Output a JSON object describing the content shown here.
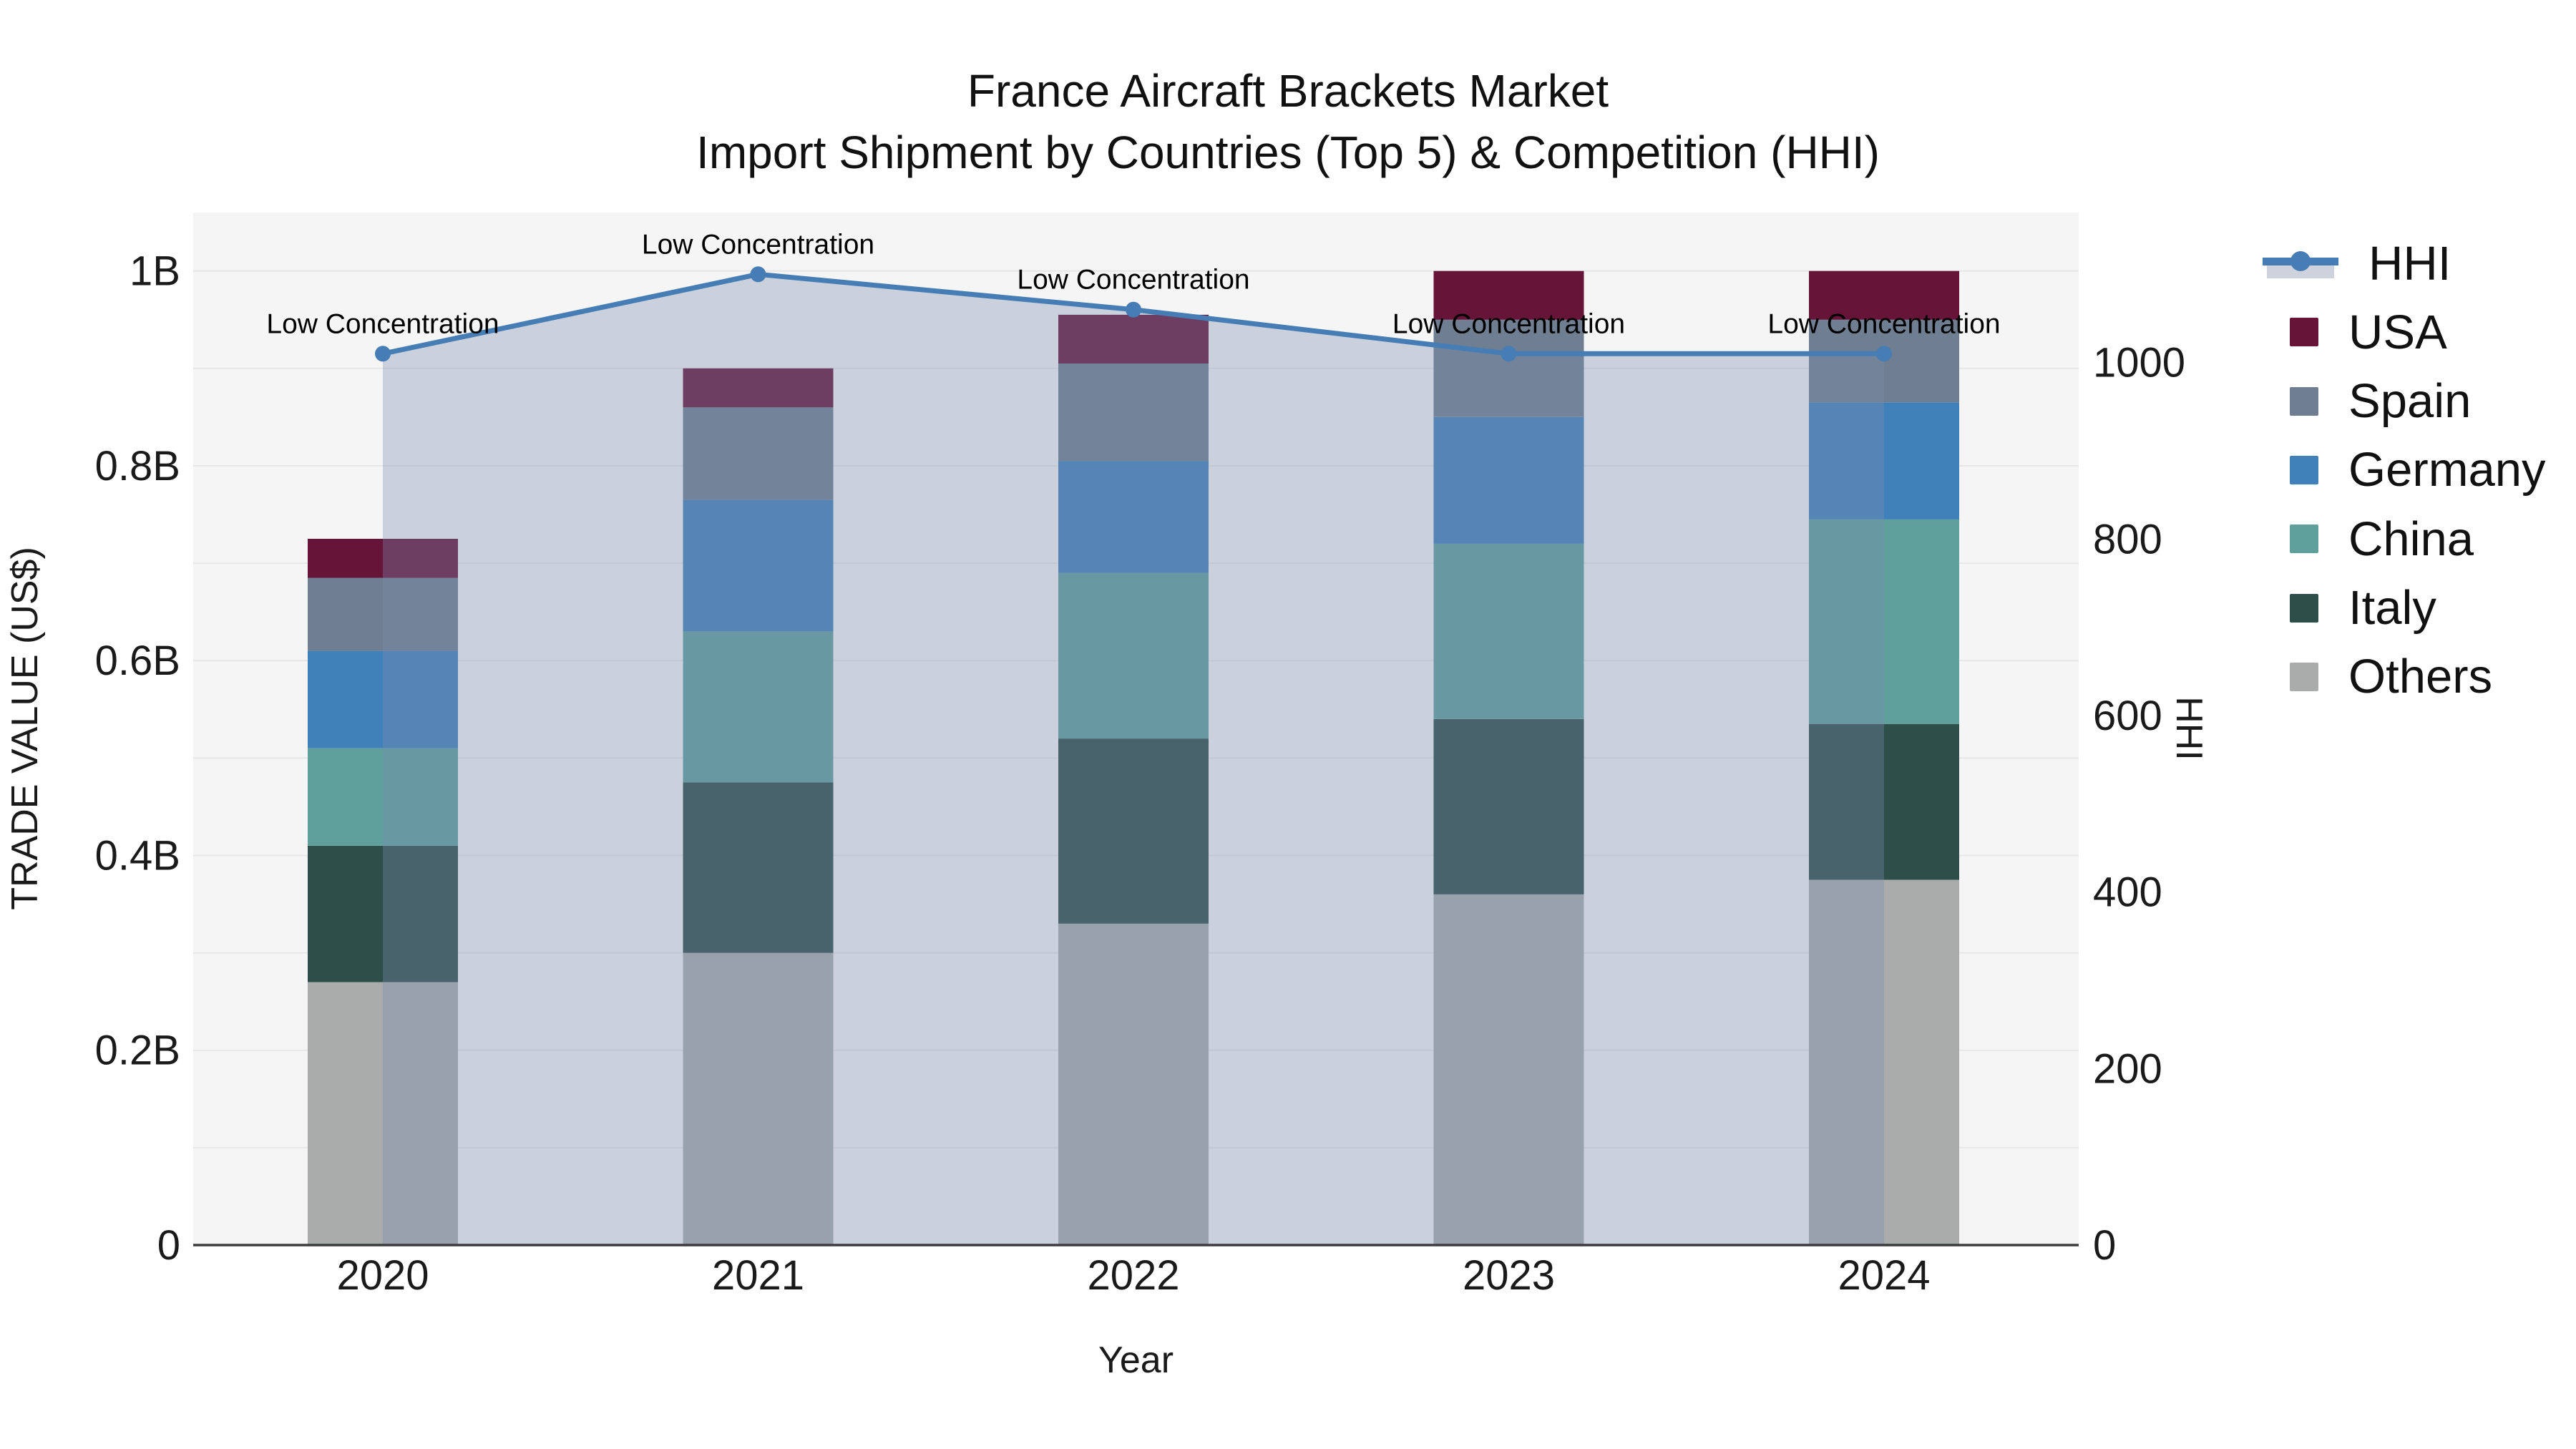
{
  "title": {
    "line1": "France Aircraft Brackets Market",
    "line2": "Import Shipment by Countries (Top 5) & Competition (HHI)"
  },
  "chart_data": {
    "type": "bar",
    "subtype": "stacked-bars-with-line-on-secondary-axis",
    "unit": "billion US$",
    "categories": [
      "2020",
      "2021",
      "2022",
      "2023",
      "2024"
    ],
    "series": [
      {
        "name": "Others",
        "color": "#a9acab",
        "values": [
          0.27,
          0.3,
          0.33,
          0.36,
          0.375
        ]
      },
      {
        "name": "Italy",
        "color": "#2d4e49",
        "values": [
          0.14,
          0.175,
          0.19,
          0.18,
          0.16
        ]
      },
      {
        "name": "China",
        "color": "#5fa09d",
        "values": [
          0.1,
          0.155,
          0.17,
          0.18,
          0.21
        ]
      },
      {
        "name": "Germany",
        "color": "#4181b9",
        "values": [
          0.1,
          0.135,
          0.115,
          0.13,
          0.12
        ]
      },
      {
        "name": "Spain",
        "color": "#6f7e90",
        "values": [
          0.075,
          0.095,
          0.1,
          0.1,
          0.085
        ]
      },
      {
        "name": "USA",
        "color": "#661538",
        "values": [
          0.04,
          0.04,
          0.05,
          0.05,
          0.05
        ]
      }
    ],
    "stack_order": "bottom_to_top",
    "totals": [
      0.725,
      0.9,
      0.955,
      1.0,
      1.0
    ],
    "line_series": {
      "name": "HHI",
      "color": "#467db4",
      "fill_color": "rgba(124,140,174,0.35)",
      "values": [
        1010,
        1100,
        1060,
        1010,
        1010
      ],
      "annotations": [
        "Low Concentration",
        "Low Concentration",
        "Low Concentration",
        "Low Concentration",
        "Low Concentration"
      ]
    },
    "xlabel": "Year",
    "ylabel": "TRADE VALUE (US$)",
    "y2label": "HHI",
    "y_ticks": [
      {
        "v": 0,
        "label": "0"
      },
      {
        "v": 0.2,
        "label": "0.2B"
      },
      {
        "v": 0.4,
        "label": "0.4B"
      },
      {
        "v": 0.6,
        "label": "0.6B"
      },
      {
        "v": 0.8,
        "label": "0.8B"
      },
      {
        "v": 1.0,
        "label": "1B"
      }
    ],
    "y2_ticks": [
      {
        "v": 0,
        "label": "0"
      },
      {
        "v": 200,
        "label": "200"
      },
      {
        "v": 400,
        "label": "400"
      },
      {
        "v": 600,
        "label": "600"
      },
      {
        "v": 800,
        "label": "800"
      },
      {
        "v": 1000,
        "label": "1000"
      }
    ],
    "ylim": [
      0,
      1.06
    ],
    "y2lim": [
      0,
      1170
    ],
    "grid_step": 0.1,
    "grid_on": true,
    "legend_position": "right"
  },
  "legend": {
    "items": [
      {
        "label": "HHI",
        "type": "line",
        "color": "#467db4",
        "fill": "#cdd2dc"
      },
      {
        "label": "USA",
        "type": "swatch",
        "color": "#661538"
      },
      {
        "label": "Spain",
        "type": "swatch",
        "color": "#6f7e90"
      },
      {
        "label": "Germany",
        "type": "swatch",
        "color": "#4181b9"
      },
      {
        "label": "China",
        "type": "swatch",
        "color": "#5fa09d"
      },
      {
        "label": "Italy",
        "type": "swatch",
        "color": "#2d4e49"
      },
      {
        "label": "Others",
        "type": "swatch",
        "color": "#a9acab"
      }
    ]
  },
  "colors": {
    "plot_bg": "#f5f5f5",
    "grid": "#e7e7e9",
    "axis_line": "#3c3c3c",
    "text": "#1a1a1a"
  }
}
